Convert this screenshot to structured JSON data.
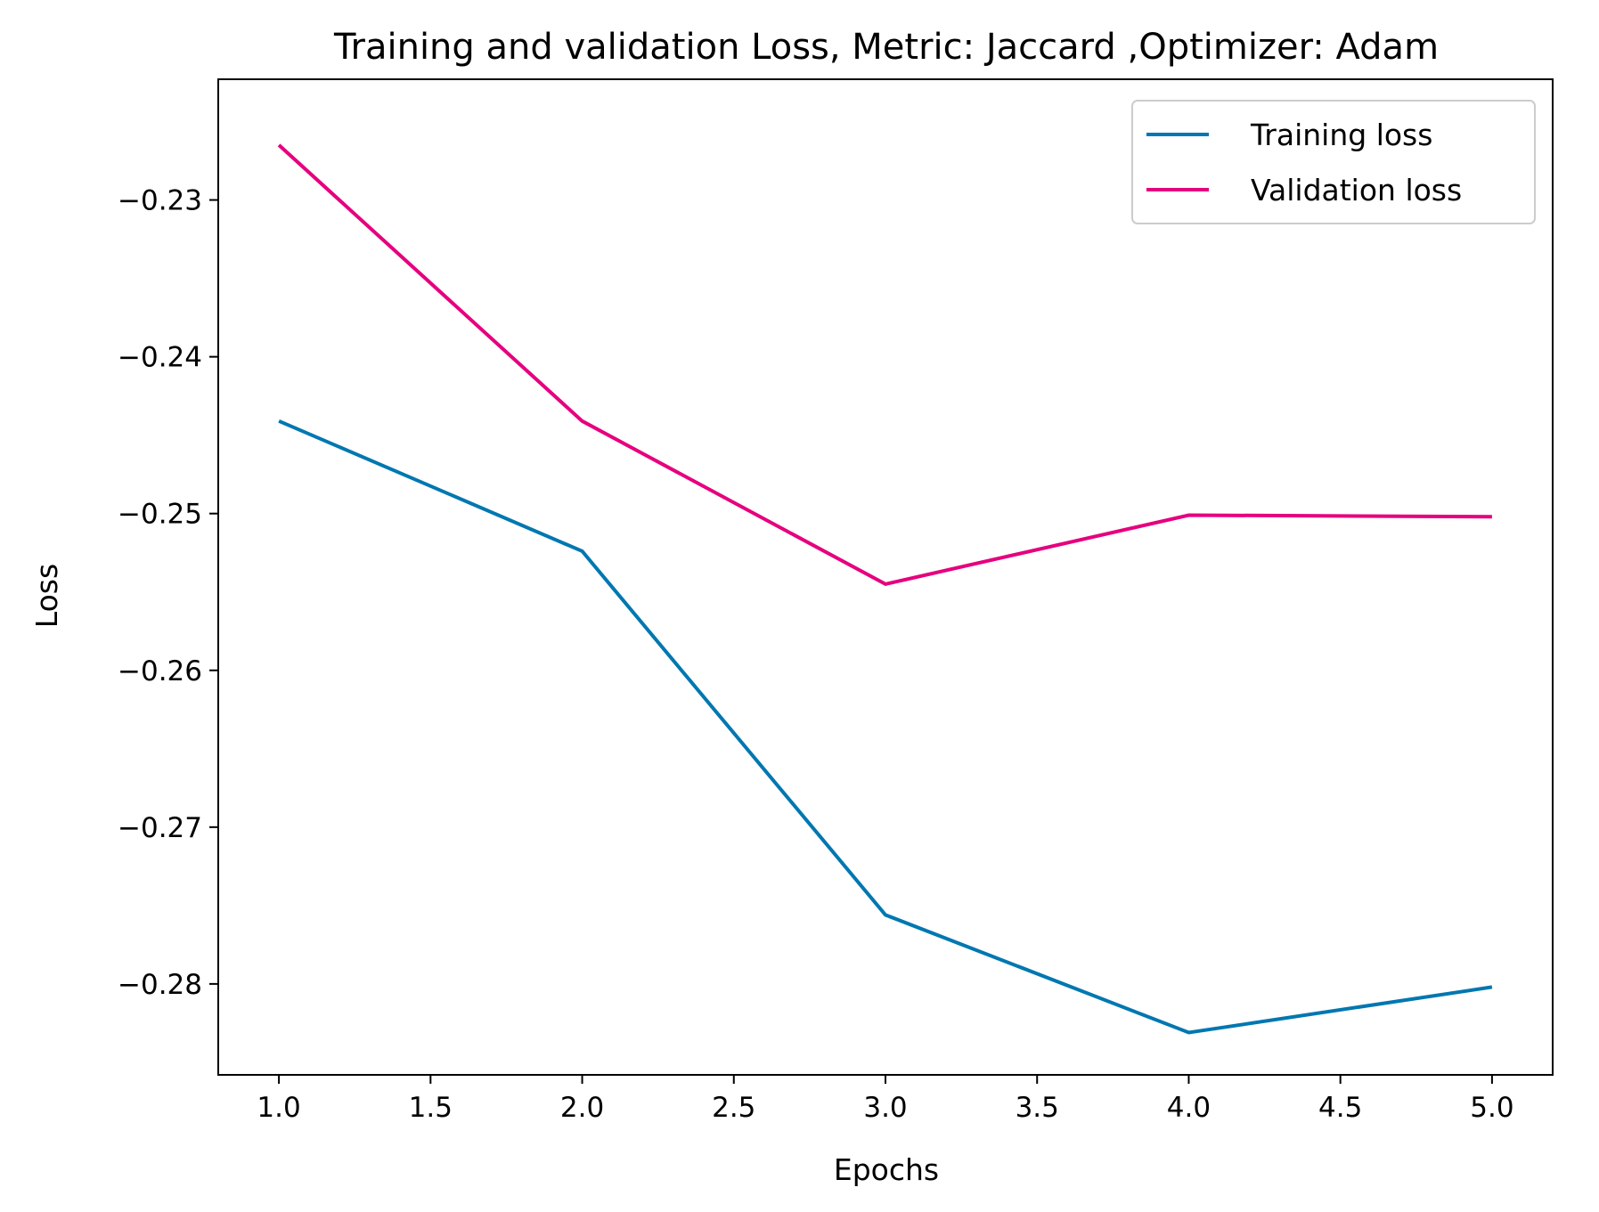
{
  "chart_data": {
    "type": "line",
    "title": "Training and validation Loss, Metric: Jaccard ,Optimizer: Adam",
    "xlabel": "Epochs",
    "ylabel": "Loss",
    "xlim": [
      0.8,
      5.2
    ],
    "ylim": [
      -0.2858,
      -0.2223
    ],
    "x_ticks": [
      1.0,
      1.5,
      2.0,
      2.5,
      3.0,
      3.5,
      4.0,
      4.5,
      5.0
    ],
    "x_tick_labels": [
      "1.0",
      "1.5",
      "2.0",
      "2.5",
      "3.0",
      "3.5",
      "4.0",
      "4.5",
      "5.0"
    ],
    "y_ticks": [
      -0.23,
      -0.24,
      -0.25,
      -0.26,
      -0.27,
      -0.28
    ],
    "y_tick_labels": [
      "−0.23",
      "−0.24",
      "−0.25",
      "−0.26",
      "−0.27",
      "−0.28"
    ],
    "grid": false,
    "legend_position": "top-right",
    "x": [
      1,
      2,
      3,
      4,
      5
    ],
    "series": [
      {
        "name": "Training loss",
        "color": "#0077b0",
        "values": [
          -0.2441,
          -0.2524,
          -0.2756,
          -0.2831,
          -0.2802
        ]
      },
      {
        "name": "Validation loss",
        "color": "#e6007e",
        "values": [
          -0.2265,
          -0.2441,
          -0.2545,
          -0.2501,
          -0.2502
        ]
      }
    ]
  }
}
